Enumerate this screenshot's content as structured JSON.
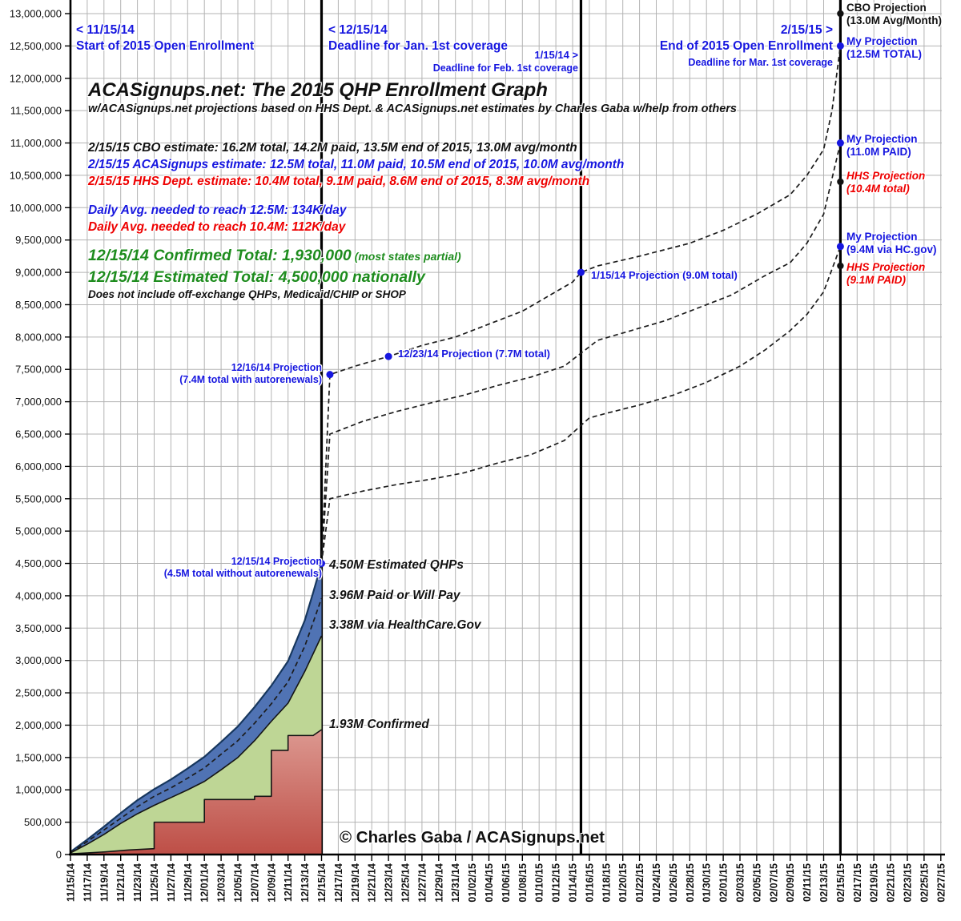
{
  "header": {
    "title": "ACASignups.net: The 2015 QHP Enrollment Graph",
    "subtitle": "w/ACASignups.net projections based on HHS Dept. & ACASignups.net estimates by Charles Gaba w/help from others"
  },
  "colors": {
    "blue_text": "#1616DF",
    "red_text": "#EE0000",
    "green_text": "#1E8C1E",
    "black_text": "#111111",
    "area_total_fill": "#5073B4",
    "area_total_stroke": "#17375E",
    "area_hcgov_fill": "#BED695",
    "area_confirmed_top": "#DC9890",
    "area_confirmed_bottom": "#BE4F47",
    "gridline": "#B3B3B3",
    "marker_blue": "#1616DF",
    "marker_black": "#111111"
  },
  "vline_annotations": {
    "v1115": {
      "l1": "< 11/15/14",
      "l2": "Start of 2015 Open Enrollment"
    },
    "v1215": {
      "l1": "< 12/15/14",
      "l2": "Deadline for Jan. 1st coverage"
    },
    "v0115": {
      "l1": "1/15/14 >",
      "l2": "Deadline for Feb. 1st coverage"
    },
    "v0215": {
      "l1": "2/15/15 >",
      "l2": "End of 2015 Open Enrollment",
      "l3": "Deadline for Mar. 1st coverage"
    }
  },
  "estimates": {
    "cbo": "2/15/15 CBO estimate: 16.2M total, 14.2M paid, 13.5M end of 2015, 13.0M avg/month",
    "aca": "2/15/15 ACASignups estimate: 12.5M total, 11.0M paid, 10.5M end of 2015, 10.0M avg/month",
    "hhs": "2/15/15 HHS Dept. estimate: 10.4M total, 9.1M paid, 8.6M end of 2015, 8.3M avg/month"
  },
  "daily_avg": {
    "blue": "Daily Avg. needed to reach 12.5M: 134K/day",
    "red": "Daily Avg. needed to reach 10.4M: 112K/day"
  },
  "totals": {
    "confirmed": "12/15/14 Confirmed Total: 1,930,000",
    "confirmed_note": " (most states partial)",
    "estimated": "12/15/14 Estimated Total: 4,500,000 nationally",
    "excl": "Does not include off-exchange QHPs, Medicaid/CHIP or SHOP"
  },
  "point_labels": {
    "p1216a": "12/16/14 Projection",
    "p1216b": "(7.4M total with autorenewals)",
    "p1223": "12/23/14 Projection (7.7M total)",
    "p0115": "1/15/14 Projection (9.0M total)",
    "p1215a": "12/15/14 Projection",
    "p1215b": "(4.5M total without autorenewals)"
  },
  "level_labels": {
    "m450": "4.50M Estimated QHPs",
    "m396": "3.96M Paid or Will Pay",
    "m338": "3.38M via HealthCare.Gov",
    "m193": "1.93M Confirmed"
  },
  "proj_labels": [
    {
      "l1": "CBO Projection",
      "l2": "(13.0M Avg/Month)",
      "color": "black"
    },
    {
      "l1": "My Projection",
      "l2": "(12.5M TOTAL)",
      "color": "blue"
    },
    {
      "l1": "My Projection",
      "l2": "(11.0M PAID)",
      "color": "blue"
    },
    {
      "l1": "HHS Projection",
      "l2": "(10.4M total)",
      "color": "red"
    },
    {
      "l1": "My Projection",
      "l2": "(9.4M via HC.gov)",
      "color": "blue"
    },
    {
      "l1": "HHS Projection",
      "l2": "(9.1M PAID)",
      "color": "red"
    }
  ],
  "copyright": "© Charles Gaba / ACASignups.net",
  "chart_data": {
    "type": "area",
    "title": "ACASignups.net: The 2015 QHP Enrollment Graph",
    "x_axis": {
      "start": "11/15/14",
      "end": "02/27/15",
      "tick_interval_days": 2,
      "labels": [
        "11/15/14",
        "11/17/14",
        "11/19/14",
        "11/21/14",
        "11/23/14",
        "11/25/14",
        "11/27/14",
        "11/29/14",
        "12/01/14",
        "12/03/14",
        "12/05/14",
        "12/07/14",
        "12/09/14",
        "12/11/14",
        "12/13/14",
        "12/15/14",
        "12/17/14",
        "12/19/14",
        "12/21/14",
        "12/23/14",
        "12/25/14",
        "12/27/14",
        "12/29/14",
        "12/31/14",
        "01/02/15",
        "01/04/15",
        "01/06/15",
        "01/08/15",
        "01/10/15",
        "01/12/15",
        "01/14/15",
        "01/16/15",
        "01/18/15",
        "01/20/15",
        "01/22/15",
        "01/24/15",
        "01/26/15",
        "01/28/15",
        "01/30/15",
        "02/01/15",
        "02/03/15",
        "02/05/15",
        "02/07/15",
        "02/09/15",
        "02/11/15",
        "02/13/15",
        "02/15/15",
        "02/17/15",
        "02/19/15",
        "02/21/15",
        "02/23/15",
        "02/25/15",
        "02/27/15"
      ]
    },
    "y_axis": {
      "min": 0,
      "max": 13000000,
      "step": 500000,
      "labels": [
        "0",
        "500,000",
        "1,000,000",
        "1,500,000",
        "2,000,000",
        "2,500,000",
        "3,000,000",
        "3,500,000",
        "4,000,000",
        "4,500,000",
        "5,000,000",
        "5,500,000",
        "6,000,000",
        "6,500,000",
        "7,000,000",
        "7,500,000",
        "8,000,000",
        "8,500,000",
        "9,000,000",
        "9,500,000",
        "10,000,000",
        "10,500,000",
        "11,000,000",
        "11,500,000",
        "12,000,000",
        "12,500,000",
        "13,000,000"
      ]
    },
    "key_vlines_days": [
      30,
      61,
      92
    ],
    "series": [
      {
        "name": "Estimated Total QHPs (blue area)",
        "style": "area",
        "points": [
          [
            "11/15",
            40000
          ],
          [
            "11/17",
            230000
          ],
          [
            "11/19",
            430000
          ],
          [
            "11/21",
            640000
          ],
          [
            "11/23",
            840000
          ],
          [
            "11/25",
            1010000
          ],
          [
            "11/27",
            1160000
          ],
          [
            "11/29",
            1330000
          ],
          [
            "12/01",
            1510000
          ],
          [
            "12/03",
            1740000
          ],
          [
            "12/05",
            1980000
          ],
          [
            "12/07",
            2280000
          ],
          [
            "12/09",
            2610000
          ],
          [
            "12/11",
            2990000
          ],
          [
            "12/13",
            3620000
          ],
          [
            "12/14",
            4050000
          ],
          [
            "12/15",
            4500000
          ]
        ]
      },
      {
        "name": "Via HealthCare.Gov (green area)",
        "style": "area",
        "points": [
          [
            "11/15",
            25000
          ],
          [
            "11/17",
            160000
          ],
          [
            "11/19",
            310000
          ],
          [
            "11/21",
            480000
          ],
          [
            "11/23",
            630000
          ],
          [
            "11/25",
            760000
          ],
          [
            "11/27",
            880000
          ],
          [
            "11/29",
            1000000
          ],
          [
            "12/01",
            1130000
          ],
          [
            "12/03",
            1310000
          ],
          [
            "12/05",
            1500000
          ],
          [
            "12/07",
            1760000
          ],
          [
            "12/09",
            2060000
          ],
          [
            "12/11",
            2340000
          ],
          [
            "12/13",
            2830000
          ],
          [
            "12/15",
            3380000
          ]
        ]
      },
      {
        "name": "Confirmed (red stepped area)",
        "style": "area-steps",
        "points": [
          [
            "11/15",
            10000
          ],
          [
            "11/19",
            40000
          ],
          [
            "11/22",
            70000
          ],
          [
            "11/25",
            90000
          ],
          [
            "11/25",
            500000
          ],
          [
            "12/01",
            500000
          ],
          [
            "12/01",
            850000
          ],
          [
            "12/07",
            850000
          ],
          [
            "12/07",
            900000
          ],
          [
            "12/09",
            900000
          ],
          [
            "12/09",
            1610000
          ],
          [
            "12/11",
            1610000
          ],
          [
            "12/11",
            1840000
          ],
          [
            "12/14",
            1840000
          ],
          [
            "12/15",
            1930000
          ]
        ]
      },
      {
        "name": "Paid or Will Pay estimate (dashed)",
        "style": "dashed-line",
        "points": [
          [
            "11/15",
            30000
          ],
          [
            "11/17",
            200000
          ],
          [
            "11/19",
            380000
          ],
          [
            "11/21",
            560000
          ],
          [
            "11/23",
            740000
          ],
          [
            "11/25",
            900000
          ],
          [
            "11/27",
            1030000
          ],
          [
            "11/29",
            1180000
          ],
          [
            "12/01",
            1340000
          ],
          [
            "12/03",
            1550000
          ],
          [
            "12/05",
            1760000
          ],
          [
            "12/07",
            2030000
          ],
          [
            "12/09",
            2330000
          ],
          [
            "12/11",
            2670000
          ],
          [
            "12/13",
            3220000
          ],
          [
            "12/15",
            3960000
          ]
        ]
      },
      {
        "name": "Projection: total to 12.5M",
        "style": "dashed-line",
        "points": [
          [
            "12/15",
            4500000
          ],
          [
            "12/16",
            7420000
          ],
          [
            "12/19",
            7550000
          ],
          [
            "12/23",
            7700000
          ],
          [
            "12/27",
            7870000
          ],
          [
            "12/31",
            8000000
          ],
          [
            "1/04",
            8200000
          ],
          [
            "1/08",
            8400000
          ],
          [
            "1/12",
            8700000
          ],
          [
            "1/14",
            8850000
          ],
          [
            "1/15",
            9000000
          ],
          [
            "1/17",
            9100000
          ],
          [
            "1/22",
            9250000
          ],
          [
            "1/28",
            9450000
          ],
          [
            "2/01",
            9650000
          ],
          [
            "2/05",
            9900000
          ],
          [
            "2/09",
            10200000
          ],
          [
            "2/11",
            10500000
          ],
          [
            "2/13",
            10900000
          ],
          [
            "2/14",
            11500000
          ],
          [
            "2/15",
            12500000
          ]
        ]
      },
      {
        "name": "Projection: paid to 11.0M",
        "style": "dashed-line",
        "points": [
          [
            "12/15",
            4500000
          ],
          [
            "12/16",
            6500000
          ],
          [
            "12/20",
            6700000
          ],
          [
            "12/24",
            6850000
          ],
          [
            "12/28",
            6980000
          ],
          [
            "1/01",
            7100000
          ],
          [
            "1/05",
            7250000
          ],
          [
            "1/09",
            7380000
          ],
          [
            "1/13",
            7550000
          ],
          [
            "1/14",
            7650000
          ],
          [
            "1/17",
            7950000
          ],
          [
            "1/21",
            8100000
          ],
          [
            "1/25",
            8250000
          ],
          [
            "1/29",
            8450000
          ],
          [
            "2/02",
            8650000
          ],
          [
            "2/06",
            8950000
          ],
          [
            "2/09",
            9150000
          ],
          [
            "2/11",
            9450000
          ],
          [
            "2/13",
            9900000
          ],
          [
            "2/14",
            10450000
          ],
          [
            "2/15",
            11000000
          ]
        ]
      },
      {
        "name": "Projection: via HC.gov to 9.4M",
        "style": "dashed-line",
        "points": [
          [
            "12/15",
            4500000
          ],
          [
            "12/16",
            5500000
          ],
          [
            "12/20",
            5620000
          ],
          [
            "12/24",
            5720000
          ],
          [
            "12/28",
            5800000
          ],
          [
            "1/01",
            5900000
          ],
          [
            "1/05",
            6050000
          ],
          [
            "1/09",
            6180000
          ],
          [
            "1/13",
            6400000
          ],
          [
            "1/16",
            6750000
          ],
          [
            "1/18",
            6820000
          ],
          [
            "1/22",
            6950000
          ],
          [
            "1/26",
            7100000
          ],
          [
            "1/30",
            7300000
          ],
          [
            "2/03",
            7550000
          ],
          [
            "2/06",
            7800000
          ],
          [
            "2/09",
            8100000
          ],
          [
            "2/11",
            8350000
          ],
          [
            "2/13",
            8700000
          ],
          [
            "2/14",
            9050000
          ],
          [
            "2/15",
            9400000
          ]
        ]
      }
    ],
    "markers": {
      "blue": [
        [
          "12/15",
          4500000
        ],
        [
          "12/16",
          7420000
        ],
        [
          "12/23",
          7700000
        ],
        [
          "1/15",
          9000000
        ],
        [
          "2/15",
          12500000
        ],
        [
          "2/15",
          11000000
        ],
        [
          "2/15",
          9400000
        ]
      ],
      "black": [
        [
          "2/15",
          13000000
        ],
        [
          "2/15",
          10400000
        ],
        [
          "2/15",
          9100000
        ]
      ]
    }
  }
}
